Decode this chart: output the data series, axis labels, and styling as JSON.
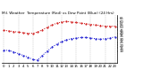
{
  "title": "Mil. Weather  Temperature (Red) vs Dew Point (Blue) (24 Hrs)",
  "temp": [
    45,
    44,
    43,
    42,
    41,
    40,
    40,
    42,
    46,
    50,
    54,
    57,
    59,
    60,
    59,
    58,
    57,
    56,
    55,
    54,
    53,
    52,
    52,
    52
  ],
  "dew": [
    12,
    11,
    9,
    6,
    3,
    0,
    -4,
    -5,
    3,
    10,
    17,
    22,
    26,
    29,
    31,
    32,
    33,
    33,
    32,
    31,
    30,
    31,
    32,
    34
  ],
  "temp_color": "#cc0000",
  "dew_color": "#0000cc",
  "bg_color": "#ffffff",
  "ylim": [
    -10,
    70
  ],
  "ytick_vals": [
    65,
    60,
    55,
    50,
    45,
    40,
    35,
    30,
    25,
    20,
    15,
    10
  ],
  "grid_color": "#bbbbbb",
  "title_fontsize": 3.0,
  "tick_fontsize": 2.8,
  "line_width": 0.7,
  "marker_size": 1.0,
  "vgrid_positions": [
    0,
    3,
    6,
    9,
    12,
    15,
    18,
    21,
    23
  ]
}
